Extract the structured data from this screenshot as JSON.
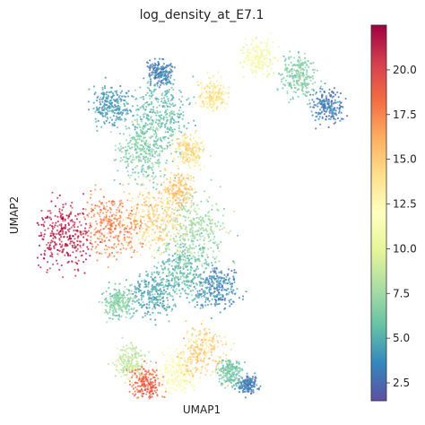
{
  "chart_data": {
    "type": "scatter",
    "title": "log_density_at_E7.1",
    "xlabel": "UMAP1",
    "ylabel": "UMAP2",
    "colormap": "Spectral_r",
    "colorbar": {
      "min": 1.5,
      "max": 22.5,
      "ticks": [
        2.5,
        5.0,
        7.5,
        10.0,
        12.5,
        15.0,
        17.5,
        20.0
      ],
      "tick_labels": [
        "2.5",
        "5.0",
        "7.5",
        "10.0",
        "12.5",
        "15.0",
        "17.5",
        "20.0"
      ]
    },
    "axes_ticks": false,
    "grid": false,
    "regions": [
      {
        "x": 2.0,
        "y": 4.6,
        "spread": 0.9,
        "value": 21.5
      },
      {
        "x": 3.4,
        "y": 4.8,
        "spread": 0.9,
        "value": 17.5
      },
      {
        "x": 4.6,
        "y": 5.0,
        "spread": 0.9,
        "value": 14.5
      },
      {
        "x": 5.3,
        "y": 5.8,
        "spread": 0.5,
        "value": 15.0
      },
      {
        "x": 5.6,
        "y": 6.8,
        "spread": 0.5,
        "value": 14.0
      },
      {
        "x": 6.3,
        "y": 8.3,
        "spread": 0.5,
        "value": 13.5
      },
      {
        "x": 7.6,
        "y": 9.3,
        "spread": 0.5,
        "value": 11.0
      },
      {
        "x": 8.8,
        "y": 8.8,
        "spread": 0.6,
        "value": 6.5
      },
      {
        "x": 9.6,
        "y": 8.0,
        "spread": 0.5,
        "value": 3.0
      },
      {
        "x": 4.8,
        "y": 7.8,
        "spread": 1.0,
        "value": 5.5
      },
      {
        "x": 4.3,
        "y": 6.8,
        "spread": 0.9,
        "value": 6.5
      },
      {
        "x": 3.4,
        "y": 8.0,
        "spread": 0.6,
        "value": 4.0
      },
      {
        "x": 4.8,
        "y": 8.9,
        "spread": 0.4,
        "value": 3.0
      },
      {
        "x": 5.8,
        "y": 4.7,
        "spread": 1.0,
        "value": 7.5
      },
      {
        "x": 5.5,
        "y": 3.6,
        "spread": 0.9,
        "value": 5.5
      },
      {
        "x": 6.4,
        "y": 3.2,
        "spread": 0.7,
        "value": 3.5
      },
      {
        "x": 4.6,
        "y": 3.0,
        "spread": 0.7,
        "value": 4.5
      },
      {
        "x": 3.6,
        "y": 2.8,
        "spread": 0.5,
        "value": 6.5
      },
      {
        "x": 3.9,
        "y": 1.2,
        "spread": 0.5,
        "value": 8.5
      },
      {
        "x": 6.0,
        "y": 1.5,
        "spread": 0.7,
        "value": 14.5
      },
      {
        "x": 5.3,
        "y": 0.9,
        "spread": 0.6,
        "value": 12.0
      },
      {
        "x": 4.4,
        "y": 0.6,
        "spread": 0.5,
        "value": 18.5
      },
      {
        "x": 6.8,
        "y": 0.9,
        "spread": 0.4,
        "value": 6.0
      },
      {
        "x": 7.3,
        "y": 0.6,
        "spread": 0.3,
        "value": 3.0
      }
    ],
    "xlim": [
      1.2,
      10.5
    ],
    "ylim": [
      0.2,
      10.0
    ]
  }
}
